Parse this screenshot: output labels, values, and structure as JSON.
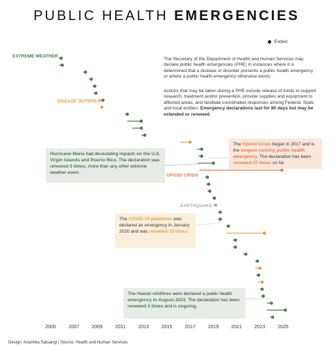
{
  "header": {
    "title_plain": "PUBLIC HEALTH",
    "title_bold": "EMERGENCIES"
  },
  "legend": {
    "ended_label": "Ended"
  },
  "description": {
    "p1": "The Secretary of the Department of Health and Human Services may declare public health emergencies (PHE) in instances where it is determined that a disease or disorder presents a public health emergency or where a public health emergency otherwise exists.",
    "p2_text": "Actions that may be taken during a PHE include release of funds to support research, treatment and/or prevention, provide supplies and equipment to affected areas, and facilitate coordinated responses among Federal, State and local entities. ",
    "p2_bold": "Emergency declarations last for 90 days but may be extended or renewed."
  },
  "annotations": {
    "maria": {
      "a": "Hurricane Maria",
      "b": " had devastating impacts ",
      "c": "on the U.S. Virgin Islands and Puerto Rico.",
      "d": " The declaration was ",
      "e": "renewed 5 times",
      "f": ", more than any other extreme weather event."
    },
    "opioid": {
      "a": "The ",
      "b": "Opioid Crisis",
      "c": " began in 2017 and is the ",
      "d": "longest running public health emergency.",
      "e": " The declaration has been ",
      "f": "renewed 27 times",
      "g": " so far."
    },
    "covid": {
      "a": "The ",
      "b": "COVID-19 pandemic",
      "c": " was declared an emergency in January 2020 and was ",
      "d": "renewed 13 times."
    },
    "hawaii": {
      "a": "The ",
      "b": "Hawaii wildfires",
      "c": " were declared a public health ",
      "d": "emergency in August 2023.",
      "e": " The declaration has been ",
      "f": "renewed 3 times",
      "g": " and is ",
      "h": "ongoing."
    }
  },
  "category_labels": {
    "extreme_weather": "EXTREME WEATHER",
    "disease_outbreak": "DISEASE OUTBREAK",
    "opioid_crisis": "OPIOID CRISIS",
    "earthquake": "EARTHQUAKE"
  },
  "colors": {
    "extreme_weather": "#4f7a4f",
    "disease_outbreak": "#e0a14a",
    "opioid_crisis": "#e57a44",
    "earthquake": "#a8a8a8",
    "highlight_green_bg": "#e6ece6",
    "highlight_orange_bg": "#fbe6dc",
    "highlight_yellow_bg": "#fbeeda"
  },
  "footer": {
    "text": "Design: Anamika Satsangi  |  Source: Health and Human Services"
  },
  "chart_data": {
    "type": "scatter",
    "title": "PUBLIC HEALTH EMERGENCIES",
    "xlabel": "",
    "ylabel": "",
    "xlim": [
      2004.5,
      2025.5
    ],
    "x_ticks": [
      "2005",
      "2007",
      "2009",
      "2011",
      "2013",
      "2015",
      "2017",
      "2019",
      "2021",
      "2023",
      "2025"
    ],
    "legend": [
      "Ended"
    ],
    "series": [
      {
        "name": "EXTREME WEATHER",
        "events": [
          {
            "start": 2005.7,
            "end": 2006.0
          },
          {
            "start": 2005.7,
            "end": 2005.9
          },
          {
            "start": 2007.8,
            "end": 2008.0
          },
          {
            "start": 2008.3,
            "end": 2008.5
          },
          {
            "start": 2008.6,
            "end": 2008.8
          },
          {
            "start": 2008.7,
            "end": 2008.9
          },
          {
            "start": 2009.2,
            "end": 2009.5
          },
          {
            "start": 2011.4,
            "end": 2011.6
          },
          {
            "start": 2011.6,
            "end": 2012.8
          },
          {
            "start": 2012.0,
            "end": 2012.8
          },
          {
            "start": 2012.8,
            "end": 2013.1
          },
          {
            "start": 2017.6,
            "end": 2018.0
          },
          {
            "start": 2017.7,
            "end": 2018.0
          },
          {
            "start": 2017.7,
            "end": 2019.0
          },
          {
            "start": 2018.3,
            "end": 2018.5
          },
          {
            "start": 2018.4,
            "end": 2018.6
          },
          {
            "start": 2018.5,
            "end": 2018.7
          },
          {
            "start": 2018.9,
            "end": 2019.1
          },
          {
            "start": 2019.4,
            "end": 2019.6
          },
          {
            "start": 2019.4,
            "end": 2019.6
          },
          {
            "start": 2020.1,
            "end": 2020.3
          },
          {
            "start": 2020.7,
            "end": 2020.9
          },
          {
            "start": 2020.7,
            "end": 2020.9
          },
          {
            "start": 2021.6,
            "end": 2021.8
          },
          {
            "start": 2022.6,
            "end": 2022.8
          },
          {
            "start": 2022.7,
            "end": 2022.9
          },
          {
            "start": 2023.0,
            "end": 2023.2
          },
          {
            "start": 2023.1,
            "end": 2023.3
          },
          {
            "start": 2023.6,
            "end": 2024.0
          },
          {
            "start": 2023.9,
            "end": 2024.1
          },
          {
            "start": 2023.6,
            "end": 2025.2,
            "ongoing": true
          }
        ]
      },
      {
        "name": "DISEASE OUTBREAK",
        "events": [
          {
            "start": 2009.3,
            "end": 2009.4
          },
          {
            "start": 2016.1,
            "end": 2017.0
          },
          {
            "start": 2020.1,
            "end": 2023.4
          },
          {
            "start": 2022.6,
            "end": 2023.0
          },
          {
            "start": 2022.8,
            "end": 2023.2
          }
        ]
      },
      {
        "name": "OPIOID CRISIS",
        "events": [
          {
            "start": 2017.8,
            "end": 2024.9,
            "ongoing": true
          }
        ]
      },
      {
        "name": "EARTHQUAKE",
        "events": [
          {
            "start": 2019.0,
            "end": 2019.2
          }
        ]
      }
    ]
  }
}
